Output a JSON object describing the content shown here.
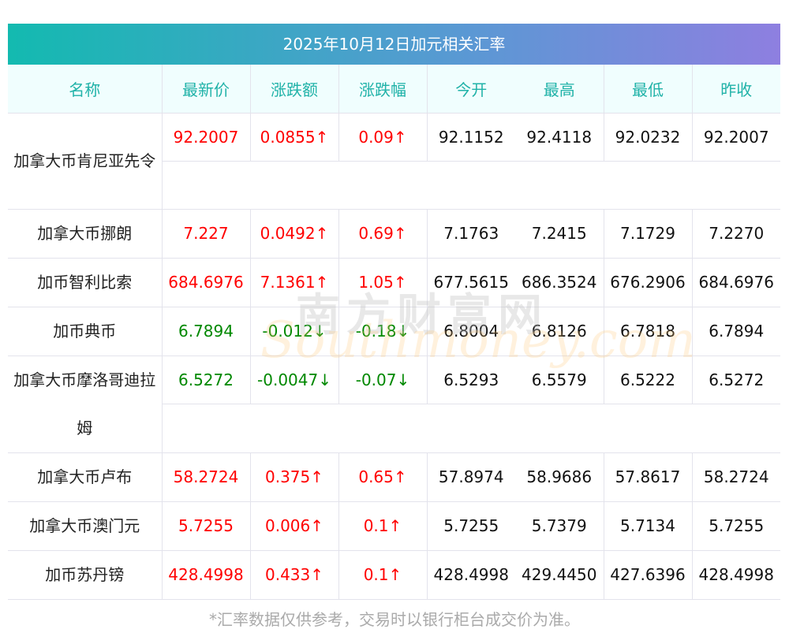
{
  "title": "2025年10月12日加元相关汇率",
  "headers": [
    "名称",
    "最新价",
    "涨跌额",
    "涨跌幅",
    "今开",
    "最高",
    "最低",
    "昨收"
  ],
  "rows": [
    {
      "name": "加拿大币肯尼亚先令",
      "latest": "92.2007",
      "change": "0.0855↑",
      "pct": "0.09↑",
      "open": "92.1152",
      "high": "92.4118",
      "low": "92.0232",
      "prev": "92.2007",
      "dir": "up"
    },
    {
      "name": "加拿大币挪朗",
      "latest": "7.227",
      "change": "0.0492↑",
      "pct": "0.69↑",
      "open": "7.1763",
      "high": "7.2415",
      "low": "7.1729",
      "prev": "7.2270",
      "dir": "up"
    },
    {
      "name": "加币智利比索",
      "latest": "684.6976",
      "change": "7.1361↑",
      "pct": "1.05↑",
      "open": "677.5615",
      "high": "686.3524",
      "low": "676.2906",
      "prev": "684.6976",
      "dir": "up"
    },
    {
      "name": "加币典币",
      "latest": "6.7894",
      "change": "-0.012↓",
      "pct": "-0.18↓",
      "open": "6.8004",
      "high": "6.8126",
      "low": "6.7818",
      "prev": "6.7894",
      "dir": "down"
    },
    {
      "name": "加拿大币摩洛哥迪拉姆",
      "latest": "6.5272",
      "change": "-0.0047↓",
      "pct": "-0.07↓",
      "open": "6.5293",
      "high": "6.5579",
      "low": "6.5222",
      "prev": "6.5272",
      "dir": "down"
    },
    {
      "name": "加拿大币卢布",
      "latest": "58.2724",
      "change": "0.375↑",
      "pct": "0.65↑",
      "open": "57.8974",
      "high": "58.9686",
      "low": "57.8617",
      "prev": "58.2724",
      "dir": "up"
    },
    {
      "name": "加拿大币澳门元",
      "latest": "5.7255",
      "change": "0.006↑",
      "pct": "0.1↑",
      "open": "5.7255",
      "high": "5.7379",
      "low": "5.7134",
      "prev": "5.7255",
      "dir": "up"
    },
    {
      "name": "加币苏丹镑",
      "latest": "428.4998",
      "change": "0.433↑",
      "pct": "0.1↑",
      "open": "428.4998",
      "high": "429.4450",
      "low": "427.6396",
      "prev": "428.4998",
      "dir": "up"
    }
  ],
  "watermark": {
    "cn": "南方财富网",
    "en": "Southmoney.com"
  },
  "footnote": "*汇率数据仅供参考，交易时以银行柜台成交价为准。"
}
